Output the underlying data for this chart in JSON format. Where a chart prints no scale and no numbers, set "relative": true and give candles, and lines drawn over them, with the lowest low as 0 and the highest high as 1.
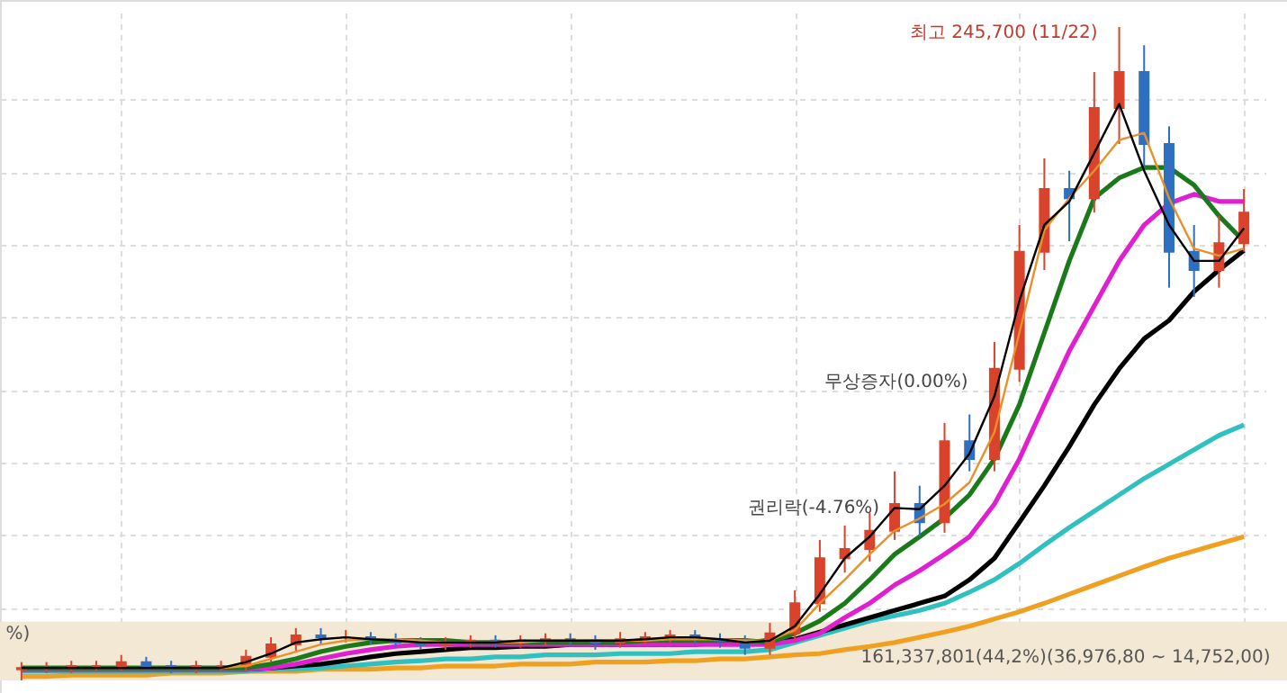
{
  "chart_data": {
    "type": "candlestick",
    "relative": true,
    "grid": true,
    "categories": [
      null,
      null,
      null,
      null,
      null,
      null,
      null,
      null,
      null,
      null,
      null,
      null,
      null,
      null,
      null,
      null,
      null,
      null,
      null,
      null,
      null,
      null,
      null,
      null,
      null,
      null,
      null,
      null,
      null,
      null,
      null,
      null,
      null,
      null,
      null,
      null,
      null,
      null,
      null,
      null,
      null,
      null,
      null,
      null,
      null,
      null,
      null,
      null,
      null,
      null
    ],
    "ohlc": [
      [
        0.017,
        0.028,
        0,
        0.019
      ],
      [
        0.019,
        0.028,
        0.011,
        0.019
      ],
      [
        0.019,
        0.03,
        0.011,
        0.022
      ],
      [
        0.022,
        0.03,
        0.014,
        0.022
      ],
      [
        0.022,
        0.039,
        0.014,
        0.028
      ],
      [
        0.028,
        0.036,
        0.014,
        0.022
      ],
      [
        0.022,
        0.03,
        0.011,
        0.019
      ],
      [
        0.019,
        0.03,
        0.011,
        0.022
      ],
      [
        0.022,
        0.03,
        0.014,
        0.022
      ],
      [
        0.022,
        0.047,
        0.014,
        0.036
      ],
      [
        0.036,
        0.066,
        0.028,
        0.055
      ],
      [
        0.055,
        0.08,
        0.044,
        0.069
      ],
      [
        0.069,
        0.08,
        0.055,
        0.066
      ],
      [
        0.066,
        0.077,
        0.058,
        0.066
      ],
      [
        0.066,
        0.074,
        0.055,
        0.063
      ],
      [
        0.063,
        0.072,
        0.05,
        0.058
      ],
      [
        0.058,
        0.066,
        0.047,
        0.055
      ],
      [
        0.055,
        0.066,
        0.047,
        0.058
      ],
      [
        0.058,
        0.069,
        0.05,
        0.061
      ],
      [
        0.061,
        0.069,
        0.05,
        0.058
      ],
      [
        0.058,
        0.069,
        0.05,
        0.061
      ],
      [
        0.061,
        0.072,
        0.052,
        0.063
      ],
      [
        0.063,
        0.072,
        0.052,
        0.061
      ],
      [
        0.061,
        0.069,
        0.047,
        0.058
      ],
      [
        0.058,
        0.074,
        0.05,
        0.063
      ],
      [
        0.063,
        0.074,
        0.055,
        0.066
      ],
      [
        0.066,
        0.077,
        0.058,
        0.069
      ],
      [
        0.069,
        0.077,
        0.055,
        0.063
      ],
      [
        0.063,
        0.072,
        0.05,
        0.061
      ],
      [
        0.061,
        0.069,
        0.039,
        0.05
      ],
      [
        0.05,
        0.088,
        0.039,
        0.072
      ],
      [
        0.072,
        0.138,
        0.061,
        0.118
      ],
      [
        0.118,
        0.215,
        0.105,
        0.187
      ],
      [
        0.187,
        0.237,
        0.165,
        0.201
      ],
      [
        0.201,
        0.256,
        0.182,
        0.229
      ],
      [
        0.229,
        0.32,
        0.215,
        0.27
      ],
      [
        0.27,
        0.298,
        0.22,
        0.242
      ],
      [
        0.242,
        0.394,
        0.226,
        0.366
      ],
      [
        0.366,
        0.407,
        0.32,
        0.339
      ],
      [
        0.339,
        0.518,
        0.32,
        0.477
      ],
      [
        0.477,
        0.697,
        0.457,
        0.656
      ],
      [
        0.656,
        0.799,
        0.628,
        0.752
      ],
      [
        0.752,
        0.78,
        0.672,
        0.738
      ],
      [
        0.738,
        0.931,
        0.716,
        0.876
      ],
      [
        0.876,
        1,
        0.821,
        0.931
      ],
      [
        0.931,
        0.972,
        0.78,
        0.821
      ],
      [
        0.821,
        0.848,
        0.601,
        0.656
      ],
      [
        0.656,
        0.697,
        0.587,
        0.628
      ],
      [
        0.628,
        0.711,
        0.601,
        0.669
      ],
      [
        0.669,
        0.752,
        0.656,
        0.716
      ]
    ],
    "colors": [
      "#d9432b",
      "#d9432b",
      "#d9432b",
      "#d9432b",
      "#d9432b",
      "#2f6fc0",
      "#2f6fc0",
      "#d9432b",
      "#d9432b",
      "#d9432b",
      "#d9432b",
      "#d9432b",
      "#2f6fc0",
      "#d9432b",
      "#2f6fc0",
      "#2f6fc0",
      "#2f6fc0",
      "#d9432b",
      "#d9432b",
      "#2f6fc0",
      "#d9432b",
      "#d9432b",
      "#2f6fc0",
      "#2f6fc0",
      "#d9432b",
      "#d9432b",
      "#d9432b",
      "#2f6fc0",
      "#2f6fc0",
      "#2f6fc0",
      "#d9432b",
      "#d9432b",
      "#d9432b",
      "#d9432b",
      "#d9432b",
      "#d9432b",
      "#2f6fc0",
      "#d9432b",
      "#2f6fc0",
      "#d9432b",
      "#d9432b",
      "#d9432b",
      "#2f6fc0",
      "#d9432b",
      "#d9432b",
      "#2f6fc0",
      "#2f6fc0",
      "#2f6fc0",
      "#d9432b",
      "#d9432b"
    ],
    "series": [
      {
        "type": "line",
        "color": "#f0a020",
        "values": [
          0.006,
          0.006,
          0.008,
          0.008,
          0.008,
          0.008,
          0.011,
          0.011,
          0.011,
          0.014,
          0.014,
          0.014,
          0.017,
          0.017,
          0.017,
          0.019,
          0.019,
          0.022,
          0.022,
          0.022,
          0.025,
          0.025,
          0.025,
          0.028,
          0.028,
          0.028,
          0.03,
          0.03,
          0.033,
          0.033,
          0.036,
          0.039,
          0.041,
          0.047,
          0.052,
          0.058,
          0.066,
          0.074,
          0.083,
          0.094,
          0.105,
          0.118,
          0.132,
          0.146,
          0.16,
          0.174,
          0.187,
          0.198,
          0.209,
          0.22
        ]
      },
      {
        "type": "line",
        "color": "#30c0c0",
        "values": [
          0.014,
          0.014,
          0.014,
          0.014,
          0.014,
          0.014,
          0.014,
          0.014,
          0.014,
          0.014,
          0.017,
          0.017,
          0.019,
          0.022,
          0.025,
          0.028,
          0.03,
          0.033,
          0.033,
          0.036,
          0.036,
          0.039,
          0.039,
          0.039,
          0.041,
          0.041,
          0.041,
          0.044,
          0.044,
          0.044,
          0.047,
          0.058,
          0.069,
          0.08,
          0.091,
          0.099,
          0.107,
          0.118,
          0.135,
          0.154,
          0.179,
          0.207,
          0.234,
          0.259,
          0.284,
          0.309,
          0.331,
          0.353,
          0.375,
          0.391
        ]
      },
      {
        "type": "line",
        "color": "#000000",
        "values": [
          0.017,
          0.017,
          0.017,
          0.017,
          0.017,
          0.017,
          0.017,
          0.017,
          0.017,
          0.017,
          0.019,
          0.022,
          0.025,
          0.03,
          0.036,
          0.041,
          0.044,
          0.047,
          0.05,
          0.05,
          0.052,
          0.052,
          0.055,
          0.055,
          0.055,
          0.055,
          0.055,
          0.055,
          0.058,
          0.058,
          0.061,
          0.063,
          0.074,
          0.085,
          0.096,
          0.107,
          0.118,
          0.129,
          0.154,
          0.187,
          0.242,
          0.298,
          0.358,
          0.422,
          0.477,
          0.523,
          0.551,
          0.595,
          0.628,
          0.658
        ]
      },
      {
        "type": "line",
        "color": "#e020d0",
        "values": [
          0.017,
          0.017,
          0.017,
          0.017,
          0.017,
          0.017,
          0.017,
          0.017,
          0.017,
          0.017,
          0.019,
          0.025,
          0.033,
          0.041,
          0.047,
          0.052,
          0.055,
          0.055,
          0.055,
          0.055,
          0.055,
          0.055,
          0.055,
          0.055,
          0.055,
          0.055,
          0.055,
          0.055,
          0.055,
          0.055,
          0.055,
          0.061,
          0.072,
          0.096,
          0.118,
          0.146,
          0.168,
          0.193,
          0.22,
          0.27,
          0.339,
          0.422,
          0.504,
          0.573,
          0.642,
          0.697,
          0.73,
          0.744,
          0.733,
          0.733
        ]
      },
      {
        "type": "line",
        "color": "#1a7a1a",
        "values": [
          0.019,
          0.019,
          0.019,
          0.019,
          0.019,
          0.019,
          0.019,
          0.019,
          0.019,
          0.019,
          0.025,
          0.033,
          0.044,
          0.052,
          0.058,
          0.061,
          0.061,
          0.061,
          0.058,
          0.058,
          0.058,
          0.058,
          0.058,
          0.058,
          0.058,
          0.061,
          0.061,
          0.061,
          0.061,
          0.061,
          0.058,
          0.072,
          0.091,
          0.118,
          0.154,
          0.193,
          0.22,
          0.248,
          0.284,
          0.339,
          0.422,
          0.532,
          0.642,
          0.738,
          0.769,
          0.785,
          0.785,
          0.758,
          0.711,
          0.672
        ]
      },
      {
        "type": "line",
        "color": "#e8902a",
        "values": [
          0.019,
          0.019,
          0.019,
          0.019,
          0.019,
          0.019,
          0.019,
          0.019,
          0.019,
          0.022,
          0.033,
          0.044,
          0.055,
          0.061,
          0.063,
          0.063,
          0.061,
          0.058,
          0.058,
          0.058,
          0.058,
          0.061,
          0.061,
          0.061,
          0.061,
          0.061,
          0.063,
          0.063,
          0.063,
          0.061,
          0.061,
          0.077,
          0.118,
          0.154,
          0.193,
          0.229,
          0.248,
          0.27,
          0.303,
          0.38,
          0.532,
          0.689,
          0.738,
          0.78,
          0.827,
          0.838,
          0.738,
          0.661,
          0.65,
          0.661
        ]
      },
      {
        "type": "line",
        "color": "#000000",
        "values": [
          0.019,
          0.019,
          0.019,
          0.019,
          0.019,
          0.019,
          0.019,
          0.019,
          0.019,
          0.028,
          0.041,
          0.058,
          0.063,
          0.066,
          0.063,
          0.061,
          0.058,
          0.058,
          0.058,
          0.058,
          0.061,
          0.061,
          0.061,
          0.061,
          0.061,
          0.063,
          0.066,
          0.066,
          0.063,
          0.058,
          0.061,
          0.083,
          0.132,
          0.187,
          0.22,
          0.264,
          0.262,
          0.298,
          0.347,
          0.435,
          0.581,
          0.697,
          0.733,
          0.807,
          0.882,
          0.78,
          0.697,
          0.642,
          0.642,
          0.692
        ]
      }
    ],
    "bands": [
      {
        "axis": "y",
        "from": 0,
        "to": 0.09,
        "color": "#f3e8d3"
      }
    ],
    "annotations": [
      "최고 245,700 (11/22)",
      "무상증자(0.00%)",
      "권리락(-4.76%)",
      "161,337,801(44,2%)(36,976,80 ~ 14,752,00)",
      "%)"
    ]
  }
}
